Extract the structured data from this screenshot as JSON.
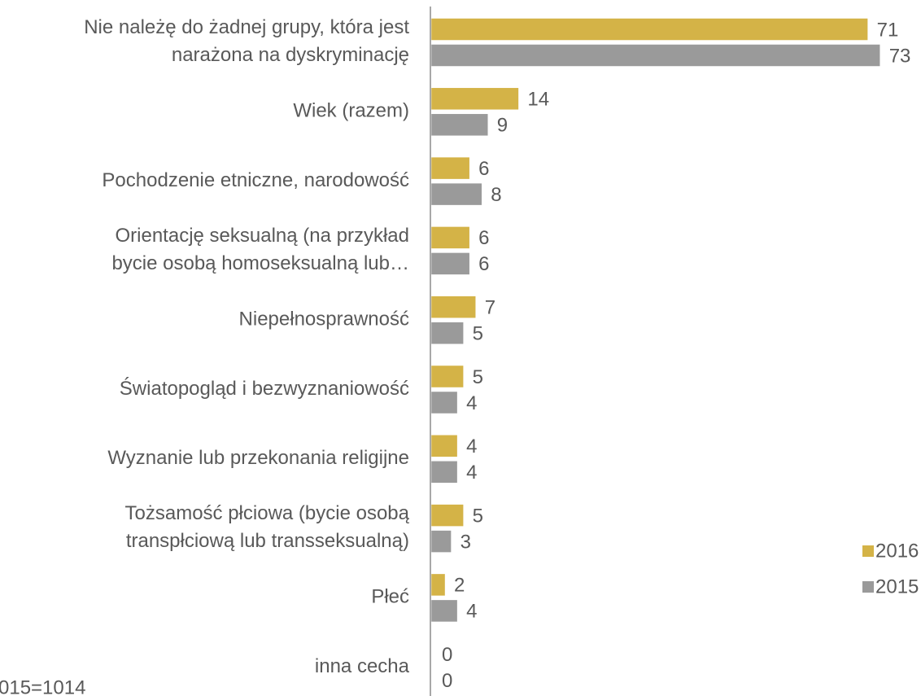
{
  "chart_data": {
    "type": "hbar",
    "categories": [
      [
        "Nie należę do żadnej grupy, która jest",
        "narażona na dyskryminację"
      ],
      "Wiek (razem)",
      "Pochodzenie etniczne, narodowość",
      [
        "Orientację seksualną (na przykład",
        "bycie osobą homoseksualną lub…"
      ],
      "Niepełnosprawność",
      "Światopogląd i bezwyznaniowość",
      "Wyznanie lub przekonania religijne",
      [
        "Tożsamość płciowa (bycie osobą",
        "transpłciową lub transseksualną)"
      ],
      "Płeć",
      "inna cecha"
    ],
    "series": [
      {
        "name": "2016",
        "color": "#d4b347",
        "values": [
          71,
          14,
          6,
          6,
          7,
          5,
          4,
          5,
          2,
          0
        ]
      },
      {
        "name": "2015",
        "color": "#9a9a9a",
        "values": [
          73,
          9,
          8,
          6,
          5,
          4,
          4,
          3,
          4,
          0
        ]
      }
    ],
    "legend": "lower right",
    "note": "015=1014"
  }
}
